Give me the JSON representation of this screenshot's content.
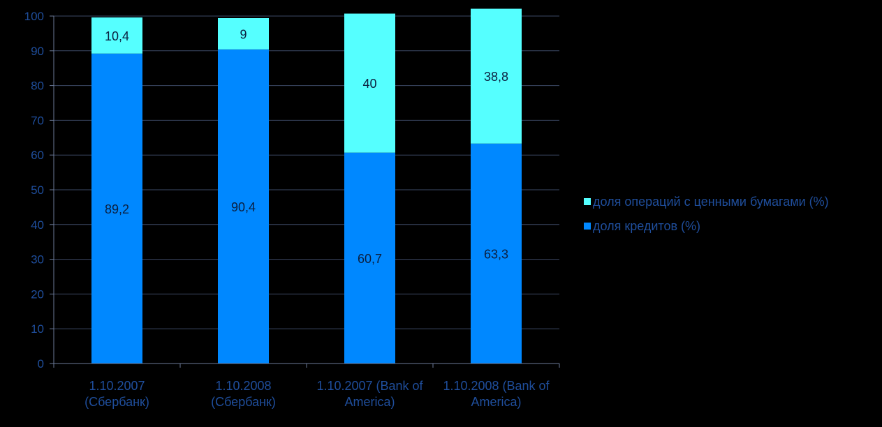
{
  "chart_data": {
    "type": "bar",
    "stacked": true,
    "categories": [
      [
        "1.10.2007",
        "(Сбербанк)"
      ],
      [
        "1.10.2008",
        "(Сбербанк)"
      ],
      [
        "1.10.2007 (Bank of",
        "America)"
      ],
      [
        "1.10.2008 (Bank of",
        "America)"
      ]
    ],
    "series": [
      {
        "name": "доля кредитов (%)",
        "color": "#0088ff",
        "values": [
          89.2,
          90.4,
          60.7,
          63.3
        ],
        "labels": [
          "89,2",
          "90,4",
          "60,7",
          "63,3"
        ]
      },
      {
        "name": "доля операций с ценными бумагами (%)",
        "color": "#55ffff",
        "values": [
          10.4,
          9,
          40,
          38.8
        ],
        "labels": [
          "10,4",
          "9",
          "40",
          "38,8"
        ]
      }
    ],
    "legend_order": [
      1,
      0
    ],
    "legend_position": "right",
    "ylim": [
      0,
      100
    ],
    "yticks": [
      0,
      10,
      20,
      30,
      40,
      50,
      60,
      70,
      80,
      90,
      100
    ],
    "grid": true,
    "title": "",
    "xlabel": "",
    "ylabel": ""
  }
}
